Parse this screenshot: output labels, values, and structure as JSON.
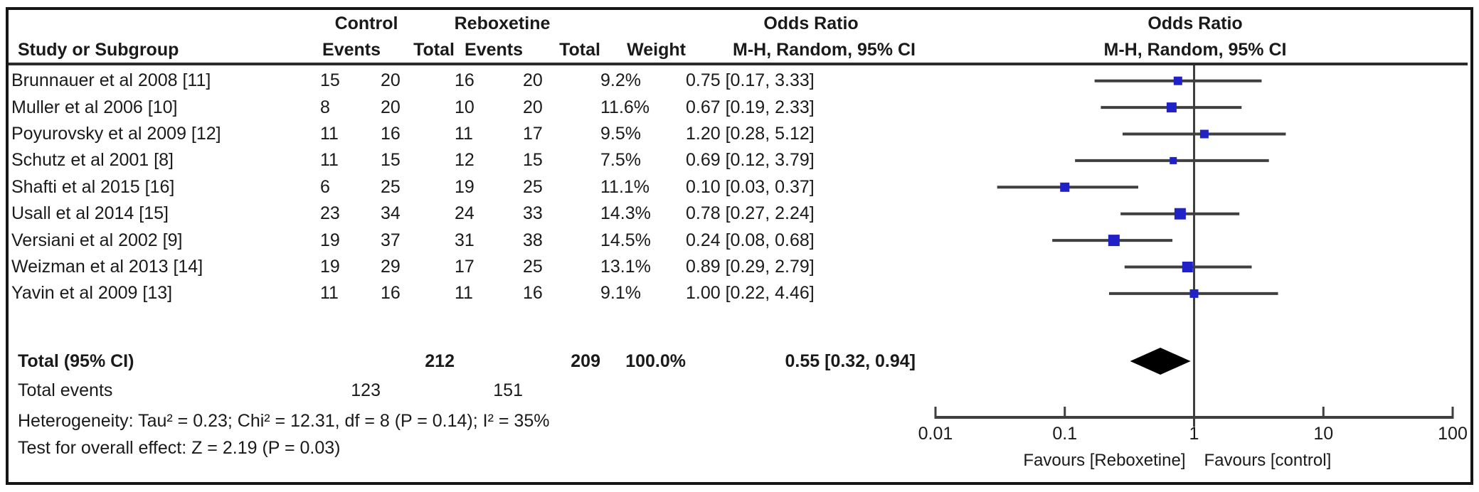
{
  "header": {
    "group_control": "Control",
    "group_treatment": "Reboxetine",
    "or_text_title": "Odds Ratio",
    "or_plot_title": "Odds Ratio",
    "or_method_subtitle": "M-H, Random, 95% CI",
    "study_col": "Study or Subgroup",
    "events_col": "Events",
    "total_col": "Total",
    "weight_col": "Weight"
  },
  "rows": [
    {
      "study": "Brunnauer et al 2008 [11]",
      "c_events": "15",
      "c_total": "20",
      "r_events": "16",
      "r_total": "20",
      "weight": "9.2%",
      "or_ci": "0.75 [0.17, 3.33]"
    },
    {
      "study": "Muller et al 2006 [10]",
      "c_events": "8",
      "c_total": "20",
      "r_events": "10",
      "r_total": "20",
      "weight": "11.6%",
      "or_ci": "0.67 [0.19, 2.33]"
    },
    {
      "study": "Poyurovsky et al 2009 [12]",
      "c_events": "11",
      "c_total": "16",
      "r_events": "11",
      "r_total": "17",
      "weight": "9.5%",
      "or_ci": "1.20 [0.28, 5.12]"
    },
    {
      "study": "Schutz et al 2001 [8]",
      "c_events": "11",
      "c_total": "15",
      "r_events": "12",
      "r_total": "15",
      "weight": "7.5%",
      "or_ci": "0.69 [0.12, 3.79]"
    },
    {
      "study": "Shafti et al 2015 [16]",
      "c_events": "6",
      "c_total": "25",
      "r_events": "19",
      "r_total": "25",
      "weight": "11.1%",
      "or_ci": "0.10 [0.03, 0.37]"
    },
    {
      "study": "Usall et al 2014 [15]",
      "c_events": "23",
      "c_total": "34",
      "r_events": "24",
      "r_total": "33",
      "weight": "14.3%",
      "or_ci": "0.78 [0.27, 2.24]"
    },
    {
      "study": "Versiani et al 2002 [9]",
      "c_events": "19",
      "c_total": "37",
      "r_events": "31",
      "r_total": "38",
      "weight": "14.5%",
      "or_ci": "0.24 [0.08, 0.68]"
    },
    {
      "study": "Weizman et al 2013 [14]",
      "c_events": "19",
      "c_total": "29",
      "r_events": "17",
      "r_total": "25",
      "weight": "13.1%",
      "or_ci": "0.89 [0.29, 2.79]"
    },
    {
      "study": "Yavin et al 2009 [13]",
      "c_events": "11",
      "c_total": "16",
      "r_events": "11",
      "r_total": "16",
      "weight": "9.1%",
      "or_ci": "1.00 [0.22, 4.46]"
    }
  ],
  "total_row": {
    "label": "Total (95% CI)",
    "c_total": "212",
    "r_total": "209",
    "weight": "100.0%",
    "or_ci": "0.55 [0.32, 0.94]"
  },
  "total_events": {
    "label": "Total events",
    "control": "123",
    "treatment": "151"
  },
  "footer": {
    "heterogeneity": "Heterogeneity: Tau² = 0.23; Chi² = 12.31, df = 8 (P = 0.14); I² = 35%",
    "overall_effect": "Test for overall effect: Z = 2.19 (P = 0.03)"
  },
  "axis": {
    "tick_labels": [
      "0.01",
      "0.1",
      "1",
      "10",
      "100"
    ],
    "favours_left": "Favours [Reboxetine]",
    "favours_right": "Favours [control]"
  },
  "chart_data": {
    "type": "scatter",
    "subtype": "forest_plot_odds_ratio",
    "x_scale": "log10",
    "xlim": [
      0.01,
      100
    ],
    "x_ticks": [
      0.01,
      0.1,
      1,
      10,
      100
    ],
    "null_line": 1,
    "studies": [
      {
        "name": "Brunnauer et al 2008 [11]",
        "control_events": 15,
        "control_total": 20,
        "reboxetine_events": 16,
        "reboxetine_total": 20,
        "weight_pct": 9.2,
        "or": 0.75,
        "ci": [
          0.17,
          3.33
        ]
      },
      {
        "name": "Muller et al 2006 [10]",
        "control_events": 8,
        "control_total": 20,
        "reboxetine_events": 10,
        "reboxetine_total": 20,
        "weight_pct": 11.6,
        "or": 0.67,
        "ci": [
          0.19,
          2.33
        ]
      },
      {
        "name": "Poyurovsky et al 2009 [12]",
        "control_events": 11,
        "control_total": 16,
        "reboxetine_events": 11,
        "reboxetine_total": 17,
        "weight_pct": 9.5,
        "or": 1.2,
        "ci": [
          0.28,
          5.12
        ]
      },
      {
        "name": "Schutz et al 2001 [8]",
        "control_events": 11,
        "control_total": 15,
        "reboxetine_events": 12,
        "reboxetine_total": 15,
        "weight_pct": 7.5,
        "or": 0.69,
        "ci": [
          0.12,
          3.79
        ]
      },
      {
        "name": "Shafti et al 2015 [16]",
        "control_events": 6,
        "control_total": 25,
        "reboxetine_events": 19,
        "reboxetine_total": 25,
        "weight_pct": 11.1,
        "or": 0.1,
        "ci": [
          0.03,
          0.37
        ]
      },
      {
        "name": "Usall et al 2014 [15]",
        "control_events": 23,
        "control_total": 34,
        "reboxetine_events": 24,
        "reboxetine_total": 33,
        "weight_pct": 14.3,
        "or": 0.78,
        "ci": [
          0.27,
          2.24
        ]
      },
      {
        "name": "Versiani et al 2002 [9]",
        "control_events": 19,
        "control_total": 37,
        "reboxetine_events": 31,
        "reboxetine_total": 38,
        "weight_pct": 14.5,
        "or": 0.24,
        "ci": [
          0.08,
          0.68
        ]
      },
      {
        "name": "Weizman et al 2013 [14]",
        "control_events": 19,
        "control_total": 29,
        "reboxetine_events": 17,
        "reboxetine_total": 25,
        "weight_pct": 13.1,
        "or": 0.89,
        "ci": [
          0.29,
          2.79
        ]
      },
      {
        "name": "Yavin et al 2009 [13]",
        "control_events": 11,
        "control_total": 16,
        "reboxetine_events": 11,
        "reboxetine_total": 16,
        "weight_pct": 9.1,
        "or": 1.0,
        "ci": [
          0.22,
          4.46
        ]
      }
    ],
    "total": {
      "label": "Total (95% CI)",
      "control_total": 212,
      "reboxetine_total": 209,
      "weight_pct": 100.0,
      "or": 0.55,
      "ci": [
        0.32,
        0.94
      ]
    },
    "total_events": {
      "control": 123,
      "reboxetine": 151
    },
    "heterogeneity": {
      "tau2": 0.23,
      "chi2": 12.31,
      "df": 8,
      "p": 0.14,
      "i2_pct": 35
    },
    "overall_effect": {
      "z": 2.19,
      "p": 0.03
    }
  },
  "colors": {
    "marker_blue": "#2121c8",
    "line_gray": "#3f3f3f",
    "diamond_black": "#000000",
    "text": "#1a1a1a",
    "border": "#161616"
  }
}
